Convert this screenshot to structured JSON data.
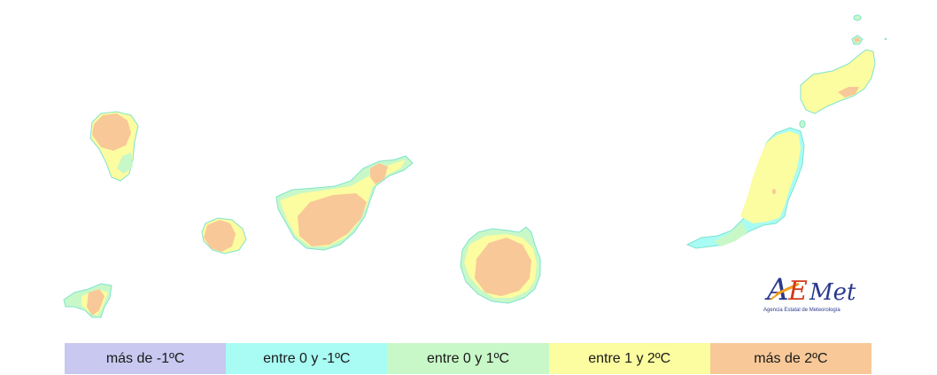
{
  "logo": {
    "wordmark": "AEMet",
    "caption": "Agencia Estatal de Meteorología"
  },
  "map": {
    "islands": [
      "La Palma",
      "La Gomera",
      "El Hierro",
      "Tenerife",
      "Gran Canaria",
      "Fuerteventura",
      "Lanzarote"
    ]
  },
  "legend": {
    "items": [
      {
        "label": "más de -1ºC",
        "color": "#c8c8f0"
      },
      {
        "label": "entre 0 y -1ºC",
        "color": "#a8fcf4"
      },
      {
        "label": "entre 0 y 1ºC",
        "color": "#c8f8c8"
      },
      {
        "label": "entre 1 y 2ºC",
        "color": "#fcfca0"
      },
      {
        "label": "más de 2ºC",
        "color": "#f8c898"
      }
    ]
  },
  "colors": {
    "level_0_to_1": "#c8f8c8",
    "level_1_to_2": "#fcfca0",
    "level_over_2": "#f8c898",
    "level_0_to_minus1": "#a8fcf4",
    "coast": "#7fe3cf",
    "logo_blue": "#2b3a8c",
    "logo_orange": "#f0a020"
  }
}
